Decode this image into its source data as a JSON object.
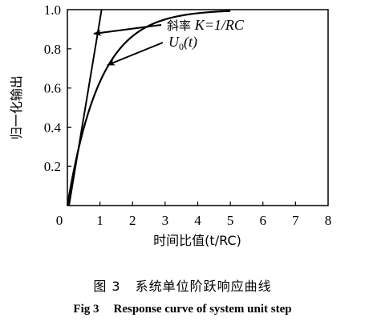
{
  "chart_data": {
    "type": "line",
    "xlabel": "时间比值(t/RC)",
    "ylabel": "归一化输出",
    "xlim": [
      0,
      8
    ],
    "ylim": [
      0,
      1.0
    ],
    "x_ticks": [
      "0",
      "1",
      "2",
      "3",
      "4",
      "5",
      "6",
      "7",
      "8"
    ],
    "y_ticks": [
      "0.2",
      "0.4",
      "0.6",
      "0.8",
      "1.0"
    ],
    "grid": false,
    "series": [
      {
        "name": "U0(t)",
        "function": "1 - exp(-x)",
        "x": [
          0,
          0.5,
          1,
          1.5,
          2,
          2.5,
          3,
          3.5,
          4,
          4.5,
          5
        ],
        "y": [
          0,
          0.39,
          0.63,
          0.78,
          0.86,
          0.92,
          0.95,
          0.97,
          0.98,
          0.99,
          1.0
        ]
      },
      {
        "name": "斜率 K=1/RC",
        "function": "x",
        "x": [
          0,
          1
        ],
        "y": [
          0,
          1.0
        ]
      }
    ],
    "annotations": {
      "slope_prefix": "斜率 ",
      "slope_formula": "K=1/RC",
      "curve_label_main": "U",
      "curve_label_sub": "0",
      "curve_label_arg": "(t)"
    }
  },
  "caption": {
    "cn_fig": "图 3",
    "cn_title": "系统单位阶跃响应曲线",
    "en_fig": "Fig 3",
    "en_title": "Response curve of system unit step"
  }
}
